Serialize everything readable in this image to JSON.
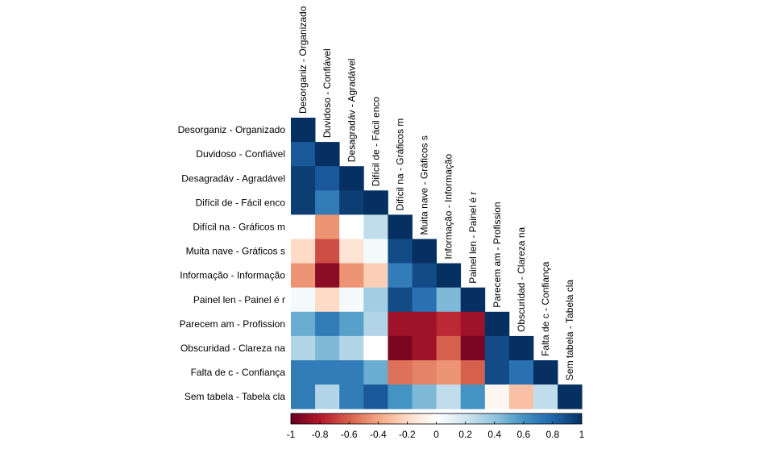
{
  "chart_data": {
    "type": "heatmap",
    "variables": [
      "Desorganiz - Organizado",
      "Duvidoso - Confiável",
      "Desagradáv - Agradável",
      "Difícil de - Fácil enco",
      "Difícil na - Gráficos m",
      "Muita nave - Gráficos s",
      "Informação - Informação",
      "Painel len - Painel é r",
      "Parecem am - Profission",
      "Obscuridad - Clareza na",
      "Falta de c - Confiança",
      "Sem tabela - Tabela cla"
    ],
    "matrix_lower": [
      [
        1.0
      ],
      [
        0.85,
        1.0
      ],
      [
        0.95,
        0.85,
        1.0
      ],
      [
        0.95,
        0.7,
        0.95,
        1.0
      ],
      [
        0.0,
        -0.45,
        0.0,
        0.25,
        1.0
      ],
      [
        -0.2,
        -0.65,
        -0.15,
        0.05,
        0.9,
        1.0
      ],
      [
        -0.45,
        -0.9,
        -0.45,
        -0.25,
        0.7,
        0.9,
        1.0
      ],
      [
        0.05,
        -0.2,
        0.05,
        0.35,
        0.9,
        0.75,
        0.45,
        1.0
      ],
      [
        0.5,
        0.7,
        0.55,
        0.3,
        -0.85,
        -0.85,
        -0.75,
        -0.85,
        1.0
      ],
      [
        0.3,
        0.45,
        0.3,
        0.0,
        -0.95,
        -0.85,
        -0.6,
        -0.95,
        0.9,
        1.0
      ],
      [
        0.7,
        0.7,
        0.7,
        0.5,
        -0.55,
        -0.5,
        -0.45,
        -0.6,
        0.9,
        0.75,
        1.0
      ],
      [
        0.7,
        0.3,
        0.7,
        0.85,
        0.6,
        0.45,
        0.25,
        0.6,
        -0.05,
        -0.3,
        0.25,
        1.0
      ]
    ],
    "colorbar": {
      "range": [
        -1,
        1
      ],
      "ticks": [
        "-1",
        "-0.8",
        "-0.6",
        "-0.4",
        "-0.2",
        "0",
        "0.2",
        "0.4",
        "0.6",
        "0.8",
        "1"
      ]
    },
    "colorscale": [
      "#67001f",
      "#b2182b",
      "#d6604d",
      "#f4a582",
      "#fddbc7",
      "#ffffff",
      "#d1e5f0",
      "#92c5de",
      "#4393c3",
      "#2166ac",
      "#053061"
    ],
    "title": "",
    "xlabel": "",
    "ylabel": ""
  }
}
